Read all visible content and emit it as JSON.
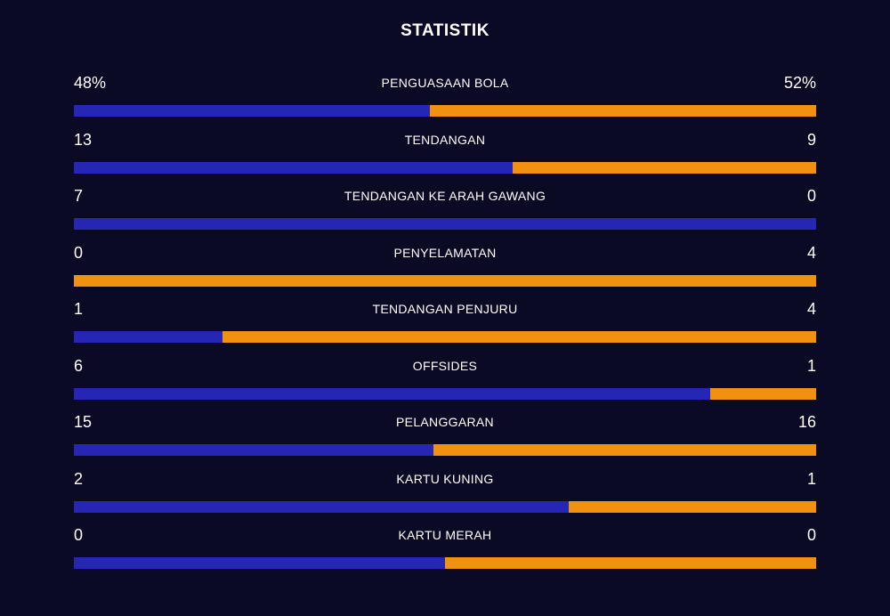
{
  "title": "STATISTIK",
  "colors": {
    "background": "#0a0a24",
    "home": "#2626b5",
    "away": "#f0910f"
  },
  "stats": [
    {
      "label": "PENGUASAAN BOLA",
      "home": "48%",
      "away": "52%",
      "home_share": 0.48
    },
    {
      "label": "TENDANGAN",
      "home": "13",
      "away": "9",
      "home_share": 0.5909
    },
    {
      "label": "TENDANGAN KE ARAH GAWANG",
      "home": "7",
      "away": "0",
      "home_share": 1.0
    },
    {
      "label": "PENYELAMATAN",
      "home": "0",
      "away": "4",
      "home_share": 0.0
    },
    {
      "label": "TENDANGAN PENJURU",
      "home": "1",
      "away": "4",
      "home_share": 0.2
    },
    {
      "label": "OFFSIDES",
      "home": "6",
      "away": "1",
      "home_share": 0.8571
    },
    {
      "label": "PELANGGARAN",
      "home": "15",
      "away": "16",
      "home_share": 0.4839
    },
    {
      "label": "KARTU KUNING",
      "home": "2",
      "away": "1",
      "home_share": 0.6667
    },
    {
      "label": "KARTU MERAH",
      "home": "0",
      "away": "0",
      "home_share": 0.5
    }
  ]
}
